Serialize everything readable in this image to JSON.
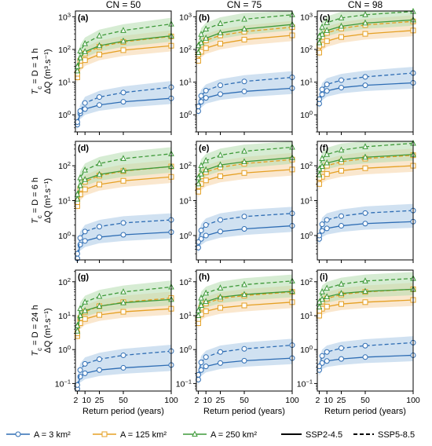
{
  "chart_data": {
    "type": "line",
    "layout": "3x3 small multiples, log y-axis, shared x-axis per column",
    "column_titles": [
      "CN = 50",
      "CN = 75",
      "CN = 98"
    ],
    "row_titles": [
      {
        "main": "T",
        "sub": "c",
        "rest": " = D = 1 h",
        "unit": "ΔQ (m³.s⁻¹)"
      },
      {
        "main": "T",
        "sub": "c",
        "rest": " = D = 6 h",
        "unit": "ΔQ (m³.s⁻¹)"
      },
      {
        "main": "T",
        "sub": "c",
        "rest": " = D = 24 h",
        "unit": "ΔQ (m³.s⁻¹)"
      }
    ],
    "xlabel": "Return period (years)",
    "x": [
      2,
      5,
      10,
      25,
      50,
      100
    ],
    "xticks": [
      2,
      10,
      25,
      50,
      100
    ],
    "xtick_labels": [
      "2",
      "10",
      "25",
      "50",
      "100"
    ],
    "yscale": "log",
    "row_ylim": [
      [
        0.3,
        1500
      ],
      [
        0.2,
        500
      ],
      [
        0.06,
        220
      ]
    ],
    "row_yticks": [
      [
        {
          "v": 1,
          "base": "10",
          "exp": "0"
        },
        {
          "v": 10,
          "base": "10",
          "exp": "1"
        },
        {
          "v": 100,
          "base": "10",
          "exp": "2"
        },
        {
          "v": 1000,
          "base": "10",
          "exp": "3"
        }
      ],
      [
        {
          "v": 1,
          "base": "10",
          "exp": "0"
        },
        {
          "v": 10,
          "base": "10",
          "exp": "1"
        },
        {
          "v": 100,
          "base": "10",
          "exp": "2"
        }
      ],
      [
        {
          "v": 0.1,
          "base": "10",
          "exp": "−1"
        },
        {
          "v": 1,
          "base": "10",
          "exp": "0"
        },
        {
          "v": 10,
          "base": "10",
          "exp": "1"
        },
        {
          "v": 100,
          "base": "10",
          "exp": "2"
        }
      ]
    ],
    "area_styles": [
      {
        "name": "A = 3 km²",
        "color": "#2e6db4",
        "fill": "#a9c8e6",
        "marker": "circle"
      },
      {
        "name": "A = 125 km²",
        "color": "#e5a024",
        "fill": "#f5d4a6",
        "marker": "square"
      },
      {
        "name": "A = 250 km²",
        "color": "#3f9a3a",
        "fill": "#b5dcae",
        "marker": "triangle"
      }
    ],
    "scenario_styles": [
      {
        "name": "SSP2-4.5",
        "dash": "none"
      },
      {
        "name": "SSP5-8.5",
        "dash": "5,3"
      }
    ],
    "panels": [
      {
        "label": "(a)",
        "row": 0,
        "col": 0,
        "series": [
          {
            "area": 0,
            "scenario": 0,
            "values": [
              0.5,
              1.1,
              1.5,
              2.0,
              2.5,
              3.2
            ]
          },
          {
            "area": 0,
            "scenario": 1,
            "values": [
              0.6,
              1.3,
              2.3,
              3.5,
              4.8,
              7.0
            ]
          },
          {
            "area": 1,
            "scenario": 0,
            "values": [
              14,
              32,
              47,
              70,
              95,
              130
            ]
          },
          {
            "area": 1,
            "scenario": 1,
            "values": [
              18,
              45,
              75,
              120,
              170,
              250
            ]
          },
          {
            "area": 2,
            "scenario": 0,
            "values": [
              22,
              55,
              85,
              130,
              180,
              260
            ]
          },
          {
            "area": 2,
            "scenario": 1,
            "values": [
              30,
              90,
              150,
              260,
              380,
              600
            ]
          }
        ]
      },
      {
        "label": "(b)",
        "row": 0,
        "col": 1,
        "series": [
          {
            "area": 0,
            "scenario": 0,
            "values": [
              1.3,
              2.5,
              3.3,
              4.3,
              5.2,
              6.5
            ]
          },
          {
            "area": 0,
            "scenario": 1,
            "values": [
              1.8,
              3.8,
              5.5,
              8.0,
              10.5,
              14
            ]
          },
          {
            "area": 1,
            "scenario": 0,
            "values": [
              45,
              85,
              110,
              150,
              200,
              270
            ]
          },
          {
            "area": 1,
            "scenario": 1,
            "values": [
              70,
              140,
              190,
              270,
              350,
              480
            ]
          },
          {
            "area": 2,
            "scenario": 0,
            "values": [
              80,
              160,
              220,
              320,
              420,
              580
            ]
          },
          {
            "area": 2,
            "scenario": 1,
            "values": [
              130,
              290,
              420,
              620,
              840,
              1150
            ]
          }
        ]
      },
      {
        "label": "(c)",
        "row": 0,
        "col": 2,
        "series": [
          {
            "area": 0,
            "scenario": 0,
            "values": [
              2.2,
              4.2,
              5.4,
              6.8,
              8.0,
              9.5
            ]
          },
          {
            "area": 0,
            "scenario": 1,
            "values": [
              3.0,
              6.0,
              8.5,
              11.5,
              14.5,
              19
            ]
          },
          {
            "area": 1,
            "scenario": 0,
            "values": [
              80,
              140,
              180,
              240,
              300,
              380
            ]
          },
          {
            "area": 1,
            "scenario": 1,
            "values": [
              130,
              240,
              320,
              440,
              560,
              720
            ]
          },
          {
            "area": 2,
            "scenario": 0,
            "values": [
              160,
              290,
              380,
              510,
              640,
              800
            ]
          },
          {
            "area": 2,
            "scenario": 1,
            "values": [
              250,
              480,
              660,
              920,
              1150,
              1450
            ]
          }
        ]
      },
      {
        "label": "(d)",
        "row": 1,
        "col": 0,
        "series": [
          {
            "area": 0,
            "scenario": 0,
            "values": [
              0.22,
              0.55,
              0.7,
              0.9,
              1.05,
              1.25
            ]
          },
          {
            "area": 0,
            "scenario": 1,
            "values": [
              0.3,
              0.85,
              1.3,
              1.8,
              2.3,
              2.8
            ]
          },
          {
            "area": 1,
            "scenario": 0,
            "values": [
              7,
              15,
              21,
              29,
              37,
              48
            ]
          },
          {
            "area": 1,
            "scenario": 1,
            "values": [
              9,
              22,
              35,
              52,
              70,
              95
            ]
          },
          {
            "area": 2,
            "scenario": 0,
            "values": [
              11,
              27,
              40,
              56,
              72,
              95
            ]
          },
          {
            "area": 2,
            "scenario": 1,
            "values": [
              15,
              45,
              75,
              115,
              160,
              220
            ]
          }
        ]
      },
      {
        "label": "(e)",
        "row": 1,
        "col": 1,
        "series": [
          {
            "area": 0,
            "scenario": 0,
            "values": [
              0.45,
              0.8,
              1.0,
              1.3,
              1.55,
              1.9
            ]
          },
          {
            "area": 0,
            "scenario": 1,
            "values": [
              0.65,
              1.4,
              2.0,
              2.8,
              3.5,
              4.3
            ]
          },
          {
            "area": 1,
            "scenario": 0,
            "values": [
              18,
              30,
              38,
              50,
              62,
              78
            ]
          },
          {
            "area": 1,
            "scenario": 1,
            "values": [
              26,
              50,
              66,
              90,
              115,
              150
            ]
          },
          {
            "area": 2,
            "scenario": 0,
            "values": [
              30,
              58,
              76,
              105,
              130,
              170
            ]
          },
          {
            "area": 2,
            "scenario": 1,
            "values": [
              45,
              100,
              140,
              200,
              260,
              340
            ]
          }
        ]
      },
      {
        "label": "(f)",
        "row": 1,
        "col": 2,
        "series": [
          {
            "area": 0,
            "scenario": 0,
            "values": [
              0.8,
              1.35,
              1.6,
              1.9,
              2.2,
              2.5
            ]
          },
          {
            "area": 0,
            "scenario": 1,
            "values": [
              1.0,
              2.1,
              2.8,
              3.6,
              4.4,
              5.2
            ]
          },
          {
            "area": 1,
            "scenario": 0,
            "values": [
              30,
              48,
              58,
              72,
              85,
              100
            ]
          },
          {
            "area": 1,
            "scenario": 1,
            "values": [
              45,
              80,
              100,
              130,
              160,
              200
            ]
          },
          {
            "area": 2,
            "scenario": 0,
            "values": [
              55,
              95,
              120,
              150,
              175,
              210
            ]
          },
          {
            "area": 2,
            "scenario": 1,
            "values": [
              80,
              160,
              210,
              280,
              350,
              440
            ]
          }
        ]
      },
      {
        "label": "(g)",
        "row": 2,
        "col": 0,
        "series": [
          {
            "area": 0,
            "scenario": 0,
            "values": [
              0.07,
              0.16,
              0.2,
              0.25,
              0.29,
              0.35
            ]
          },
          {
            "area": 0,
            "scenario": 1,
            "values": [
              0.09,
              0.25,
              0.38,
              0.52,
              0.68,
              0.9
            ]
          },
          {
            "area": 1,
            "scenario": 0,
            "values": [
              2.5,
              6,
              8,
              10.5,
              13,
              16
            ]
          },
          {
            "area": 1,
            "scenario": 1,
            "values": [
              3,
              8.5,
              13,
              19,
              25,
              33
            ]
          },
          {
            "area": 2,
            "scenario": 0,
            "values": [
              3.5,
              10,
              14,
              19,
              24,
              30
            ]
          },
          {
            "area": 2,
            "scenario": 1,
            "values": [
              5,
              16,
              25,
              37,
              50,
              70
            ]
          }
        ]
      },
      {
        "label": "(h)",
        "row": 2,
        "col": 1,
        "series": [
          {
            "area": 0,
            "scenario": 0,
            "values": [
              0.13,
              0.25,
              0.32,
              0.4,
              0.47,
              0.56
            ]
          },
          {
            "area": 0,
            "scenario": 1,
            "values": [
              0.18,
              0.42,
              0.6,
              0.85,
              1.05,
              1.35
            ]
          },
          {
            "area": 1,
            "scenario": 0,
            "values": [
              6,
              11,
              13.5,
              17,
              20,
              25
            ]
          },
          {
            "area": 1,
            "scenario": 1,
            "values": [
              8,
              17,
              23,
              32,
              39,
              50
            ]
          },
          {
            "area": 2,
            "scenario": 0,
            "values": [
              10,
              20,
              26,
              35,
              42,
              52
            ]
          },
          {
            "area": 2,
            "scenario": 1,
            "values": [
              14,
              33,
              46,
              65,
              82,
              105
            ]
          }
        ]
      },
      {
        "label": "(i)",
        "row": 2,
        "col": 2,
        "series": [
          {
            "area": 0,
            "scenario": 0,
            "values": [
              0.25,
              0.4,
              0.46,
              0.53,
              0.6,
              0.68
            ]
          },
          {
            "area": 0,
            "scenario": 1,
            "values": [
              0.32,
              0.65,
              0.85,
              1.1,
              1.3,
              1.6
            ]
          },
          {
            "area": 1,
            "scenario": 0,
            "values": [
              10,
              16,
              18.5,
              22,
              25,
              29
            ]
          },
          {
            "area": 1,
            "scenario": 1,
            "values": [
              14,
              26,
              32,
              42,
              50,
              60
            ]
          },
          {
            "area": 2,
            "scenario": 0,
            "values": [
              18,
              30,
              36,
              45,
              52,
              60
            ]
          },
          {
            "area": 2,
            "scenario": 1,
            "values": [
              25,
              50,
              64,
              85,
              105,
              125
            ]
          }
        ]
      }
    ],
    "legend": {
      "placement": "bottom",
      "entries": [
        {
          "label": "A = 3 km²",
          "area": 0
        },
        {
          "label": "A = 125 km²",
          "area": 1
        },
        {
          "label": "A = 250 km²",
          "area": 2
        },
        {
          "label": "SSP2-4.5",
          "scenario": 0
        },
        {
          "label": "SSP5-8.5",
          "scenario": 1
        }
      ]
    },
    "band": "shaded uncertainty band around each area's series"
  }
}
